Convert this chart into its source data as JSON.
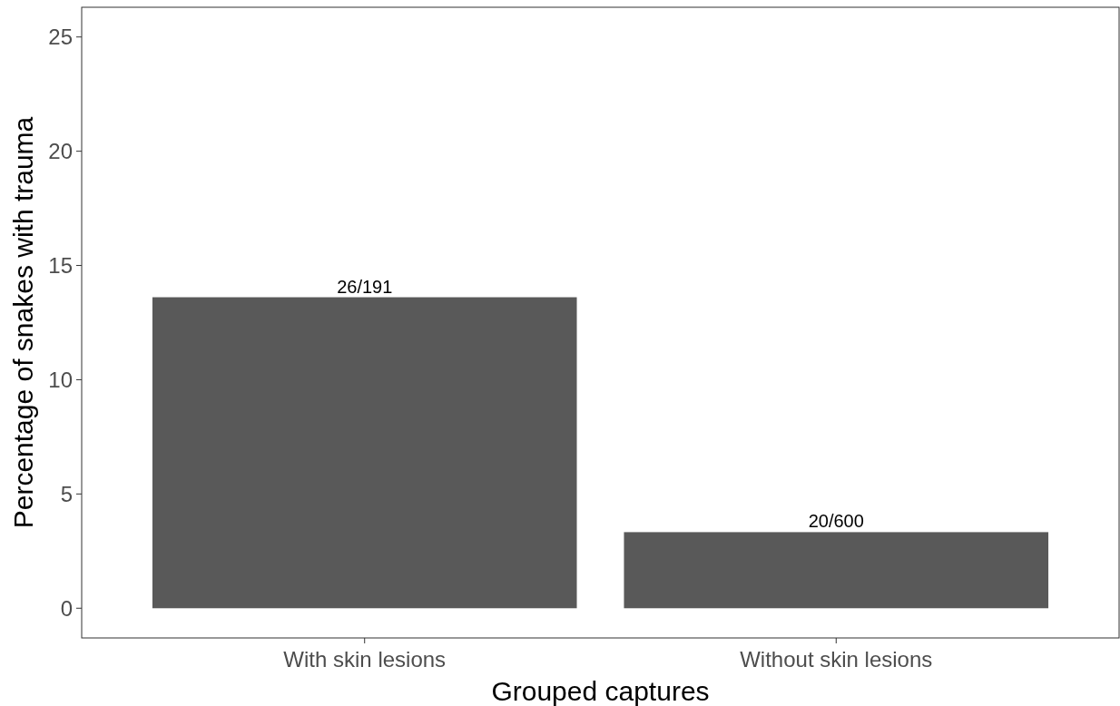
{
  "chart_data": {
    "type": "bar",
    "xlabel": "Grouped captures",
    "ylabel": "Percentage of snakes with trauma",
    "categories": [
      "With skin lesions",
      "Without skin lesions"
    ],
    "values": [
      13.61,
      3.33
    ],
    "value_labels": [
      "26/191",
      "20/600"
    ],
    "color": "#595959",
    "ylim": [
      -1.3,
      26.3
    ],
    "yticks": [
      0,
      5,
      10,
      15,
      20,
      25
    ],
    "grid": false
  }
}
